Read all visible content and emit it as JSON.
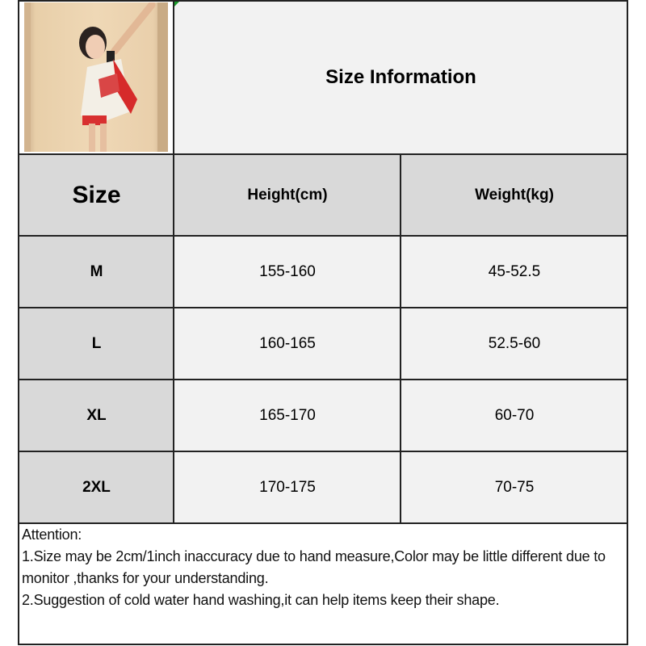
{
  "title": "Size Information",
  "photo": {
    "alt_icon": "model-photo"
  },
  "table": {
    "headers": [
      "Size",
      "Height(cm)",
      "Weight(kg)"
    ],
    "rows": [
      {
        "size": "M",
        "height": "155-160",
        "weight": "45-52.5"
      },
      {
        "size": "L",
        "height": "160-165",
        "weight": "52.5-60"
      },
      {
        "size": "XL",
        "height": "165-170",
        "weight": "60-70"
      },
      {
        "size": "2XL",
        "height": "170-175",
        "weight": "70-75"
      }
    ]
  },
  "notes": {
    "heading": "Attention:",
    "line1": "1.Size may be 2cm/1inch inaccuracy due to hand measure,Color may be little different due to monitor ,thanks for your understanding.",
    "line2": "2.Suggestion of cold water hand washing,it can help items keep their shape."
  },
  "colors": {
    "header_bg": "#d9d9d9",
    "cell_bg": "#f2f2f2",
    "border": "#222222"
  }
}
